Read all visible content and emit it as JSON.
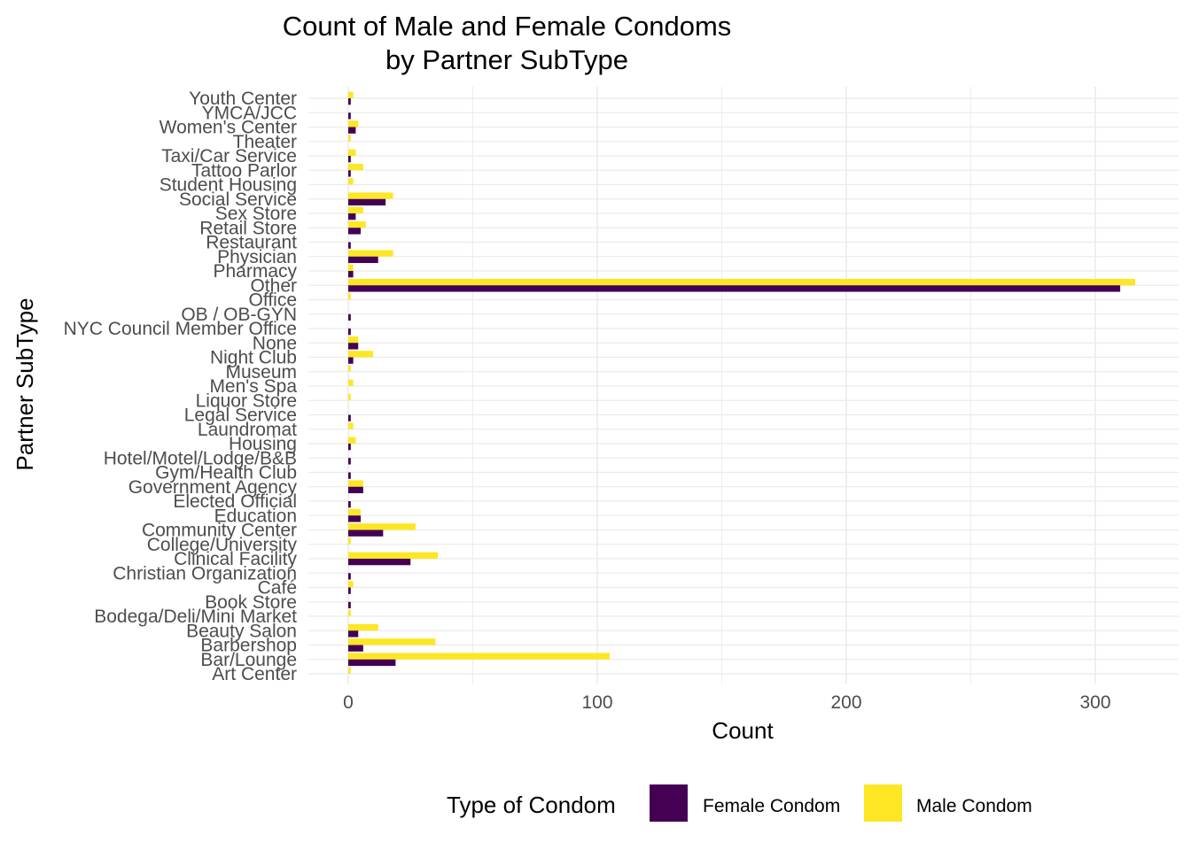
{
  "chart_data": {
    "type": "bar",
    "orientation": "horizontal",
    "title": "Count of Male and Female Condoms\nby Partner SubType",
    "xlabel": "Count",
    "ylabel": "Partner SubType",
    "xlim": [
      0,
      330
    ],
    "xticks": [
      0,
      100,
      200,
      300
    ],
    "grid": true,
    "legend_position": "bottom",
    "legend_title": "Type of Condom",
    "categories": [
      "Art Center",
      "Bar/Lounge",
      "Barbershop",
      "Beauty Salon",
      "Bodega/Deli/Mini Market",
      "Book Store",
      "Café",
      "Christian Organization",
      "Clinical Facility",
      "College/University",
      "Community Center",
      "Education",
      "Elected Official",
      "Government Agency",
      "Gym/Health Club",
      "Hotel/Motel/Lodge/B&B",
      "Housing",
      "Laundromat",
      "Legal Service",
      "Liquor Store",
      "Men's Spa",
      "Museum",
      "Night Club",
      "None",
      "NYC Council Member Office",
      "OB / OB-GYN",
      "Office",
      "Other",
      "Pharmacy",
      "Physician",
      "Restaurant",
      "Retail Store",
      "Sex Store",
      "Social Service",
      "Student Housing",
      "Tattoo Parlor",
      "Taxi/Car Service",
      "Theater",
      "Women's Center",
      "YMCA/JCC",
      "Youth Center"
    ],
    "series": [
      {
        "name": "Female Condom",
        "color": "#440154",
        "values": [
          0,
          19,
          6,
          4,
          0,
          1,
          1,
          1,
          25,
          0,
          14,
          5,
          1,
          6,
          1,
          1,
          1,
          0,
          1,
          0,
          0,
          0,
          2,
          4,
          1,
          1,
          0,
          310,
          2,
          12,
          1,
          5,
          3,
          15,
          0,
          1,
          1,
          0,
          3,
          1,
          1
        ]
      },
      {
        "name": "Male Condom",
        "color": "#FDE725",
        "values": [
          1,
          105,
          35,
          12,
          1,
          0,
          2,
          0,
          36,
          1,
          27,
          5,
          0,
          6,
          0,
          0,
          3,
          2,
          0,
          1,
          2,
          1,
          10,
          4,
          0,
          0,
          1,
          316,
          2,
          18,
          0,
          7,
          6,
          18,
          2,
          6,
          3,
          1,
          4,
          0,
          2
        ]
      }
    ]
  }
}
